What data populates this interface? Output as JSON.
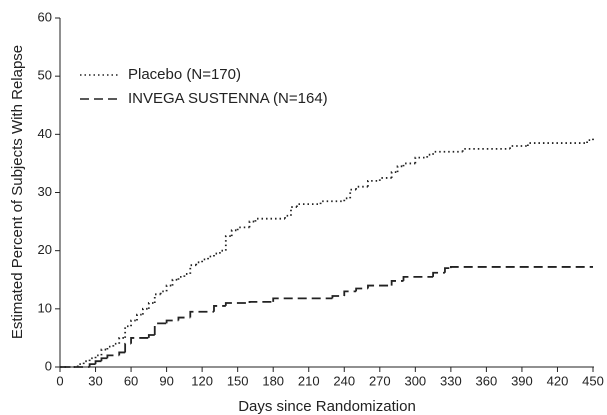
{
  "chart_data": {
    "type": "step",
    "x_label": "Days since Randomization",
    "y_label": "Estimated Percent of Subjects With Relapse",
    "xlim": [
      0,
      450
    ],
    "ylim": [
      0,
      60
    ],
    "xticks": [
      0,
      30,
      60,
      90,
      120,
      150,
      180,
      210,
      240,
      270,
      300,
      330,
      360,
      390,
      420,
      450
    ],
    "yticks": [
      0,
      10,
      20,
      30,
      40,
      50,
      60
    ],
    "grid": false,
    "legend": "upper left",
    "series": [
      {
        "name": "Placebo (N=170)",
        "color": "#222222",
        "dash": "dotted",
        "x": [
          0,
          15,
          20,
          25,
          30,
          35,
          40,
          45,
          50,
          55,
          60,
          65,
          70,
          75,
          80,
          85,
          90,
          95,
          100,
          105,
          110,
          115,
          120,
          125,
          130,
          135,
          140,
          145,
          150,
          160,
          165,
          190,
          195,
          200,
          220,
          240,
          245,
          250,
          260,
          270,
          280,
          285,
          290,
          300,
          310,
          315,
          340,
          380,
          395,
          445,
          450
        ],
        "values": [
          0,
          0.5,
          1,
          1.5,
          2,
          3,
          3.5,
          4,
          5,
          7,
          8,
          9,
          10,
          11,
          12.5,
          13,
          14,
          15,
          15.5,
          16,
          17.5,
          18,
          18.5,
          19,
          19.5,
          20,
          22.5,
          23.5,
          24,
          25,
          25.5,
          26,
          27.5,
          28,
          28.5,
          29,
          30.5,
          31,
          32,
          32.5,
          33.5,
          34.5,
          35,
          36,
          36.5,
          37,
          37.5,
          38,
          38.5,
          39,
          39.5
        ]
      },
      {
        "name": "INVEGA SUSTENNA (N=164)",
        "color": "#222222",
        "dash": "dashed",
        "x": [
          0,
          25,
          30,
          35,
          40,
          50,
          55,
          60,
          75,
          80,
          90,
          100,
          110,
          130,
          140,
          160,
          180,
          230,
          240,
          250,
          260,
          280,
          290,
          315,
          325,
          330,
          450
        ],
        "values": [
          0,
          0.5,
          1,
          1.5,
          2,
          2.5,
          4,
          5,
          5.5,
          7.5,
          8,
          8.5,
          9.5,
          10.5,
          11,
          11.2,
          11.8,
          12.2,
          13,
          13.5,
          14,
          14.8,
          15.5,
          16.2,
          17,
          17.2,
          17.2
        ]
      }
    ]
  }
}
